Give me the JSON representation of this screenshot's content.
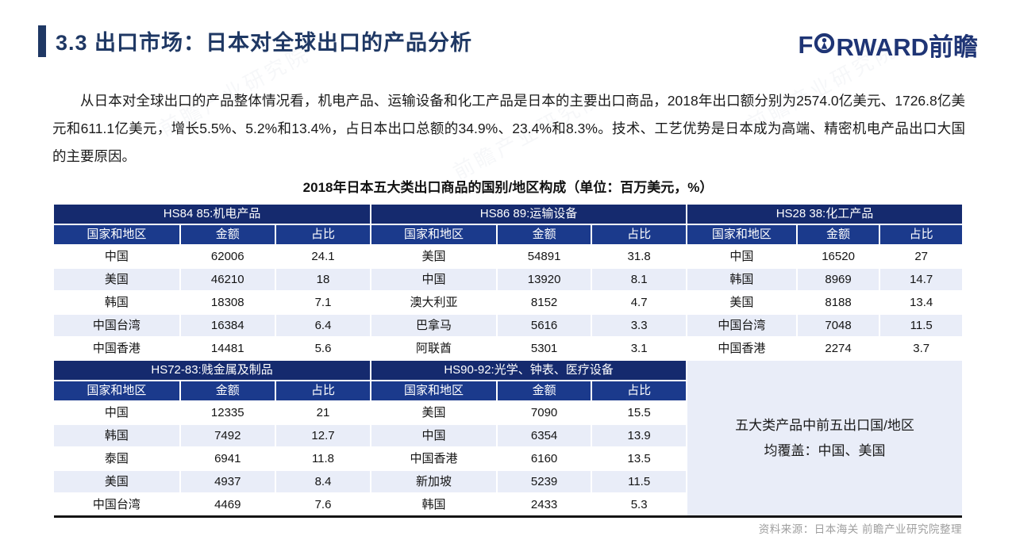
{
  "header": {
    "title": "3.3 出口市场：日本对全球出口的产品分析",
    "logo_text_left": "F",
    "logo_text_right": "RWARD前瞻"
  },
  "paragraph": "从日本对全球出口的产品整体情况看，机电产品、运输设备和化工产品是日本的主要出口商品，2018年出口额分别为2574.0亿美元、1726.8亿美元和611.1亿美元，增长5.5%、5.2%和13.4%，占日本出口总额的34.9%、23.4%和8.3%。技术、工艺优势是日本成为高端、精密机电产品出口大国的主要原因。",
  "table": {
    "title": "2018年日本五大类出口商品的国别/地区构成（单位：百万美元，%）",
    "columns": [
      "国家和地区",
      "金额",
      "占比"
    ],
    "sections": [
      {
        "name": "HS84 85:机电产品",
        "rows": [
          [
            "中国",
            "62006",
            "24.1"
          ],
          [
            "美国",
            "46210",
            "18"
          ],
          [
            "韩国",
            "18308",
            "7.1"
          ],
          [
            "中国台湾",
            "16384",
            "6.4"
          ],
          [
            "中国香港",
            "14481",
            "5.6"
          ]
        ]
      },
      {
        "name": "HS86 89:运输设备",
        "rows": [
          [
            "美国",
            "54891",
            "31.8"
          ],
          [
            "中国",
            "13920",
            "8.1"
          ],
          [
            "澳大利亚",
            "8152",
            "4.7"
          ],
          [
            "巴拿马",
            "5616",
            "3.3"
          ],
          [
            "阿联酋",
            "5301",
            "3.1"
          ]
        ]
      },
      {
        "name": "HS28 38:化工产品",
        "rows": [
          [
            "中国",
            "16520",
            "27"
          ],
          [
            "韩国",
            "8969",
            "14.7"
          ],
          [
            "美国",
            "8188",
            "13.4"
          ],
          [
            "中国台湾",
            "7048",
            "11.5"
          ],
          [
            "中国香港",
            "2274",
            "3.7"
          ]
        ]
      },
      {
        "name": "HS72-83:贱金属及制品",
        "rows": [
          [
            "中国",
            "12335",
            "21"
          ],
          [
            "韩国",
            "7492",
            "12.7"
          ],
          [
            "泰国",
            "6941",
            "11.8"
          ],
          [
            "美国",
            "4937",
            "8.4"
          ],
          [
            "中国台湾",
            "4469",
            "7.6"
          ]
        ]
      },
      {
        "name": "HS90-92:光学、钟表、医疗设备",
        "rows": [
          [
            "美国",
            "7090",
            "15.5"
          ],
          [
            "中国",
            "6354",
            "13.9"
          ],
          [
            "中国香港",
            "6160",
            "13.5"
          ],
          [
            "新加坡",
            "5239",
            "11.5"
          ],
          [
            "韩国",
            "2433",
            "5.3"
          ]
        ]
      }
    ],
    "note": {
      "line1": "五大类产品中前五出口国/地区",
      "line2": "均覆盖：中国、美国"
    }
  },
  "footer": {
    "source": "资料来源：日本海关  前瞻产业研究院整理"
  },
  "watermark": "前瞻产业研究院",
  "colors": {
    "accent_navy": "#1F3864",
    "section_header_bg": "#152A6E",
    "column_header_bg": "#1B3A8C",
    "row_alt_bg": "#E9EDF8",
    "source_gray": "#9E9E9E"
  }
}
